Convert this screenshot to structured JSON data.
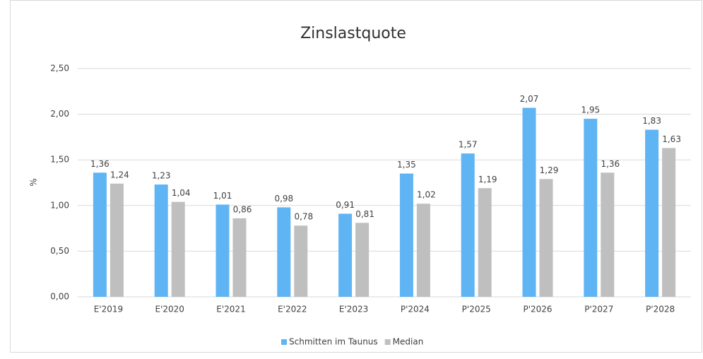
{
  "chart_data": {
    "type": "bar",
    "title": "Zinslastquote",
    "y_label": "%",
    "categories": [
      "E'2019",
      "E'2020",
      "E'2021",
      "E'2022",
      "E'2023",
      "P'2024",
      "P'2025",
      "P'2026",
      "P'2027",
      "P'2028"
    ],
    "series": [
      {
        "name": "Schmitten im Taunus",
        "color": "#5fb4f4",
        "values": [
          1.36,
          1.23,
          1.01,
          0.98,
          0.91,
          1.35,
          1.57,
          2.07,
          1.95,
          1.83
        ],
        "value_labels": [
          "1,36",
          "1,23",
          "1,01",
          "0,98",
          "0,91",
          "1,35",
          "1,57",
          "2,07",
          "1,95",
          "1,83"
        ]
      },
      {
        "name": "Median",
        "color": "#bfbfbf",
        "values": [
          1.24,
          1.04,
          0.86,
          0.78,
          0.81,
          1.02,
          1.19,
          1.29,
          1.36,
          1.63
        ],
        "value_labels": [
          "1,24",
          "1,04",
          "0,86",
          "0,78",
          "0,81",
          "1,02",
          "1,19",
          "1,29",
          "1,36",
          "1,63"
        ]
      }
    ],
    "ylim": [
      0,
      2.5
    ],
    "yticks": [
      {
        "value": 0,
        "label": "0,00"
      },
      {
        "value": 0.5,
        "label": "0,50"
      },
      {
        "value": 1,
        "label": "1,00"
      },
      {
        "value": 1.5,
        "label": "1,50"
      },
      {
        "value": 2,
        "label": "2,00"
      },
      {
        "value": 2.5,
        "label": "2,50"
      }
    ],
    "grid": true,
    "legend": "bottom"
  }
}
